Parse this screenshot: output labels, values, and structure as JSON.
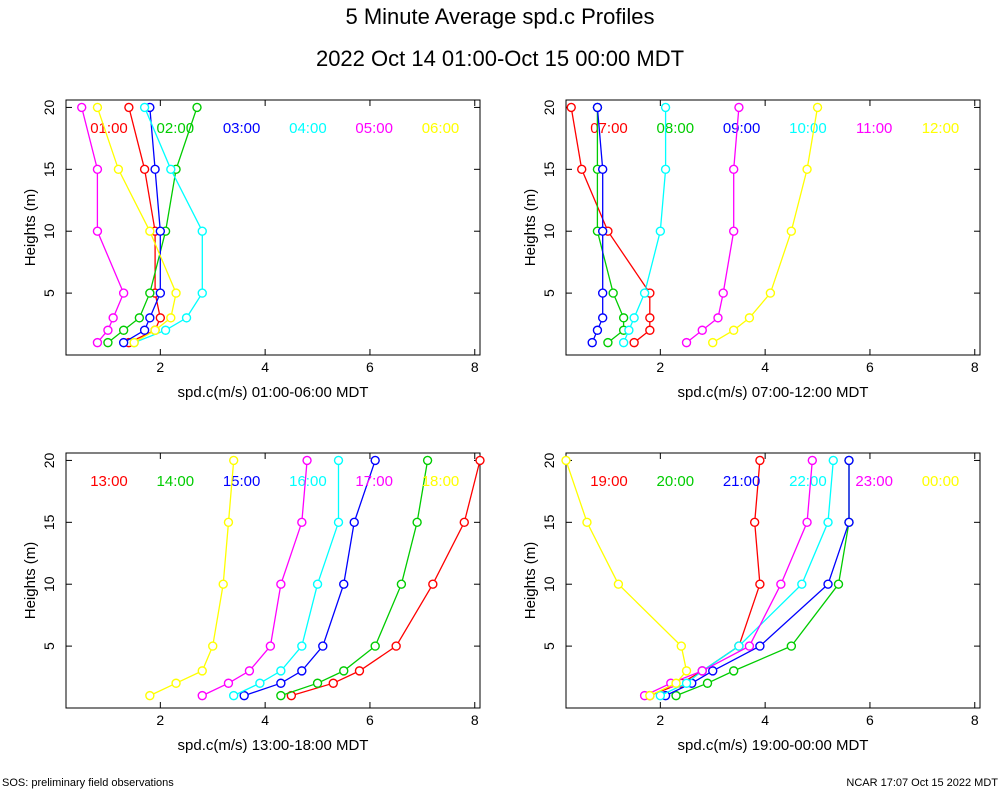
{
  "title": "5 Minute Average spd.c Profiles",
  "subtitle": "2022 Oct 14 01:00-Oct 15 00:00 MDT",
  "footer": {
    "left": "SOS: preliminary field observations",
    "right": "NCAR 17:07 Oct 15 2022 MDT"
  },
  "chart_data": [
    {
      "type": "line",
      "xlabel": "spd.c(m/s) 01:00-06:00 MDT",
      "ylabel": "Heights (m)",
      "xlim": [
        0.2,
        8.1
      ],
      "ylim": [
        0,
        20.6
      ],
      "xticks": [
        2,
        4,
        6,
        8
      ],
      "yticks": [
        5,
        10,
        15,
        20
      ],
      "heights": [
        1,
        2,
        3,
        5,
        10,
        15,
        20
      ],
      "series": [
        {
          "name": "01:00",
          "color": "#ff0000",
          "values": [
            1.4,
            1.9,
            2.0,
            1.9,
            1.9,
            1.7,
            1.4
          ]
        },
        {
          "name": "02:00",
          "color": "#00cc00",
          "values": [
            1.0,
            1.3,
            1.6,
            1.8,
            2.1,
            2.3,
            2.7
          ]
        },
        {
          "name": "03:00",
          "color": "#0000ff",
          "values": [
            1.3,
            1.7,
            1.8,
            2.0,
            2.0,
            1.9,
            1.8
          ]
        },
        {
          "name": "04:00",
          "color": "#00ffff",
          "values": [
            1.5,
            2.1,
            2.5,
            2.8,
            2.8,
            2.2,
            1.7
          ]
        },
        {
          "name": "05:00",
          "color": "#ff00ff",
          "values": [
            0.8,
            1.0,
            1.1,
            1.3,
            0.8,
            0.8,
            0.5
          ]
        },
        {
          "name": "06:00",
          "color": "#ffff00",
          "values": [
            1.5,
            1.9,
            2.2,
            2.3,
            1.8,
            1.2,
            0.8
          ]
        }
      ]
    },
    {
      "type": "line",
      "xlabel": "spd.c(m/s) 07:00-12:00 MDT",
      "ylabel": "Heights (m)",
      "xlim": [
        0.2,
        8.1
      ],
      "ylim": [
        0,
        20.6
      ],
      "xticks": [
        2,
        4,
        6,
        8
      ],
      "yticks": [
        5,
        10,
        15,
        20
      ],
      "heights": [
        1,
        2,
        3,
        5,
        10,
        15,
        20
      ],
      "series": [
        {
          "name": "07:00",
          "color": "#ff0000",
          "values": [
            1.5,
            1.8,
            1.8,
            1.8,
            1.0,
            0.5,
            0.3
          ]
        },
        {
          "name": "08:00",
          "color": "#00cc00",
          "values": [
            1.0,
            1.3,
            1.3,
            1.1,
            0.8,
            0.8,
            0.8
          ]
        },
        {
          "name": "09:00",
          "color": "#0000ff",
          "values": [
            0.7,
            0.8,
            0.9,
            0.9,
            0.9,
            0.9,
            0.8
          ]
        },
        {
          "name": "10:00",
          "color": "#00ffff",
          "values": [
            1.3,
            1.4,
            1.5,
            1.7,
            2.0,
            2.1,
            2.1
          ]
        },
        {
          "name": "11:00",
          "color": "#ff00ff",
          "values": [
            2.5,
            2.8,
            3.1,
            3.2,
            3.4,
            3.4,
            3.5
          ]
        },
        {
          "name": "12:00",
          "color": "#ffff00",
          "values": [
            3.0,
            3.4,
            3.7,
            4.1,
            4.5,
            4.8,
            5.0
          ]
        }
      ]
    },
    {
      "type": "line",
      "xlabel": "spd.c(m/s) 13:00-18:00 MDT",
      "ylabel": "Heights (m)",
      "xlim": [
        0.2,
        8.1
      ],
      "ylim": [
        0,
        20.6
      ],
      "xticks": [
        2,
        4,
        6,
        8
      ],
      "yticks": [
        5,
        10,
        15,
        20
      ],
      "heights": [
        1,
        2,
        3,
        5,
        10,
        15,
        20
      ],
      "series": [
        {
          "name": "13:00",
          "color": "#ff0000",
          "values": [
            4.5,
            5.3,
            5.8,
            6.5,
            7.2,
            7.8,
            8.1
          ]
        },
        {
          "name": "14:00",
          "color": "#00cc00",
          "values": [
            4.3,
            5.0,
            5.5,
            6.1,
            6.6,
            6.9,
            7.1
          ]
        },
        {
          "name": "15:00",
          "color": "#0000ff",
          "values": [
            3.6,
            4.3,
            4.7,
            5.1,
            5.5,
            5.7,
            6.1
          ]
        },
        {
          "name": "16:00",
          "color": "#00ffff",
          "values": [
            3.4,
            3.9,
            4.3,
            4.7,
            5.0,
            5.4,
            5.4
          ]
        },
        {
          "name": "17:00",
          "color": "#ff00ff",
          "values": [
            2.8,
            3.3,
            3.7,
            4.1,
            4.3,
            4.7,
            4.8
          ]
        },
        {
          "name": "18:00",
          "color": "#ffff00",
          "values": [
            1.8,
            2.3,
            2.8,
            3.0,
            3.2,
            3.3,
            3.4
          ]
        }
      ]
    },
    {
      "type": "line",
      "xlabel": "spd.c(m/s) 19:00-00:00 MDT",
      "ylabel": "Heights (m)",
      "xlim": [
        0.2,
        8.1
      ],
      "ylim": [
        0,
        20.6
      ],
      "xticks": [
        2,
        4,
        6,
        8
      ],
      "yticks": [
        5,
        10,
        15,
        20
      ],
      "heights": [
        1,
        2,
        3,
        5,
        10,
        15,
        20
      ],
      "series": [
        {
          "name": "19:00",
          "color": "#ff0000",
          "values": [
            1.8,
            2.4,
            2.8,
            3.5,
            3.9,
            3.8,
            3.9
          ]
        },
        {
          "name": "20:00",
          "color": "#00cc00",
          "values": [
            2.3,
            2.9,
            3.4,
            4.5,
            5.4,
            5.6,
            5.6
          ]
        },
        {
          "name": "21:00",
          "color": "#0000ff",
          "values": [
            2.1,
            2.6,
            3.0,
            3.9,
            5.2,
            5.6,
            5.6
          ]
        },
        {
          "name": "22:00",
          "color": "#00ffff",
          "values": [
            2.0,
            2.5,
            2.8,
            3.5,
            4.7,
            5.2,
            5.3
          ]
        },
        {
          "name": "23:00",
          "color": "#ff00ff",
          "values": [
            1.7,
            2.2,
            2.8,
            3.7,
            4.3,
            4.8,
            4.9
          ]
        },
        {
          "name": "00:00",
          "color": "#ffff00",
          "values": [
            1.8,
            2.3,
            2.5,
            2.4,
            1.2,
            0.6,
            0.2
          ]
        }
      ]
    }
  ]
}
